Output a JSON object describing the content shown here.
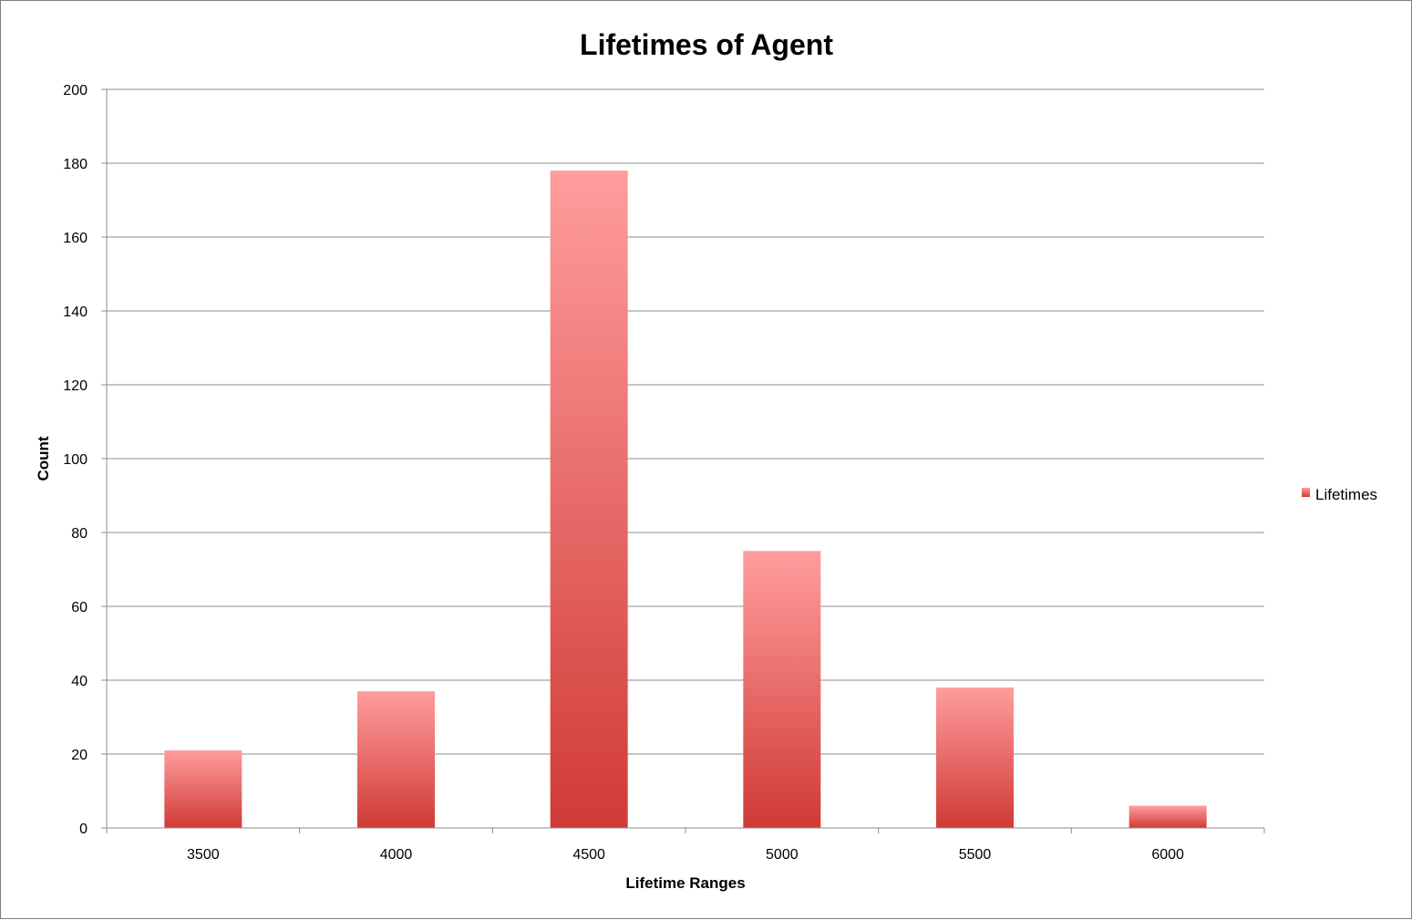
{
  "chart_data": {
    "type": "bar",
    "title": "Lifetimes of Agent",
    "xlabel": "Lifetime Ranges",
    "ylabel": "Count",
    "categories": [
      "3500",
      "4000",
      "4500",
      "5000",
      "5500",
      "6000"
    ],
    "series": [
      {
        "name": "Lifetimes",
        "values": [
          21,
          37,
          178,
          75,
          38,
          6
        ],
        "color_top": "#ff9d9d",
        "color_bottom": "#d03a36"
      }
    ],
    "ylim": [
      0,
      200
    ],
    "yticks": [
      "0",
      "20",
      "40",
      "60",
      "80",
      "100",
      "120",
      "140",
      "160",
      "180",
      "200"
    ],
    "grid": true,
    "legend_position": "right"
  }
}
